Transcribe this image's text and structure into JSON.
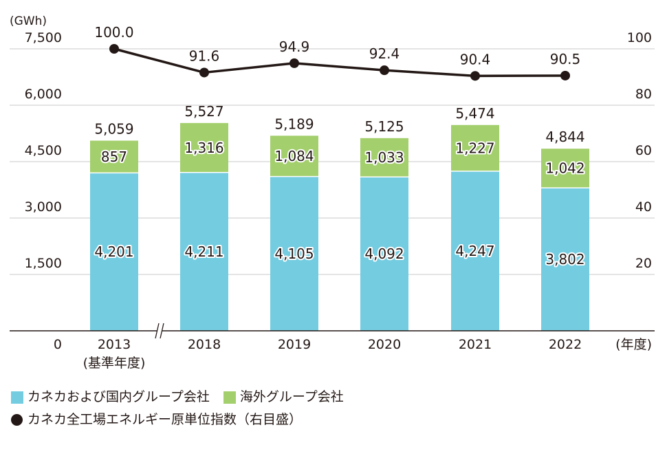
{
  "chart_data": {
    "type": "bar",
    "stacked": true,
    "categories": [
      "2013",
      "2018",
      "2019",
      "2020",
      "2021",
      "2022"
    ],
    "category_sublabels": [
      "(基準年度)",
      "",
      "",
      "",
      "",
      ""
    ],
    "series": [
      {
        "name": "カネカおよび国内グループ会社",
        "type": "bar",
        "axis": "left",
        "values": [
          4201,
          4211,
          4105,
          4092,
          4247,
          3802
        ],
        "value_labels": [
          "4,201",
          "4,211",
          "4,105",
          "4,092",
          "4,247",
          "3,802"
        ]
      },
      {
        "name": "海外グループ会社",
        "type": "bar",
        "axis": "left",
        "values": [
          857,
          1316,
          1084,
          1033,
          1227,
          1042
        ],
        "value_labels": [
          "857",
          "1,316",
          "1,084",
          "1,033",
          "1,227",
          "1,042"
        ]
      },
      {
        "name": "カネカ全工場エネルギー原単位指数（右目盛）",
        "type": "line",
        "axis": "right",
        "values": [
          100.0,
          91.6,
          94.9,
          92.4,
          90.4,
          90.5
        ],
        "value_labels": [
          "100.0",
          "91.6",
          "94.9",
          "92.4",
          "90.4",
          "90.5"
        ]
      }
    ],
    "totals": [
      5059,
      5527,
      5189,
      5125,
      5474,
      4844
    ],
    "total_labels": [
      "5,059",
      "5,527",
      "5,189",
      "5,125",
      "5,474",
      "4,844"
    ],
    "y_left": {
      "unit": "(GWh)",
      "range": [
        0,
        7500
      ],
      "ticks": [
        0,
        1500,
        3000,
        4500,
        6000,
        7500
      ],
      "tick_labels": [
        "0",
        "1,500",
        "3,000",
        "4,500",
        "6,000",
        "7,500"
      ]
    },
    "y_right": {
      "range": [
        0,
        100
      ],
      "ticks": [
        20,
        40,
        60,
        80,
        100
      ],
      "tick_labels": [
        "20",
        "40",
        "60",
        "80",
        "100"
      ]
    },
    "x_unit": "(年度)",
    "axis_break_between": [
      "2013",
      "2018"
    ],
    "grid": "horizontal",
    "legend_position": "bottom-left",
    "colors": {
      "domestic": "#74CCE0",
      "overseas": "#A3CF6C",
      "line": "#231815",
      "grid": "#c8c8c8",
      "axis": "#231815"
    }
  }
}
